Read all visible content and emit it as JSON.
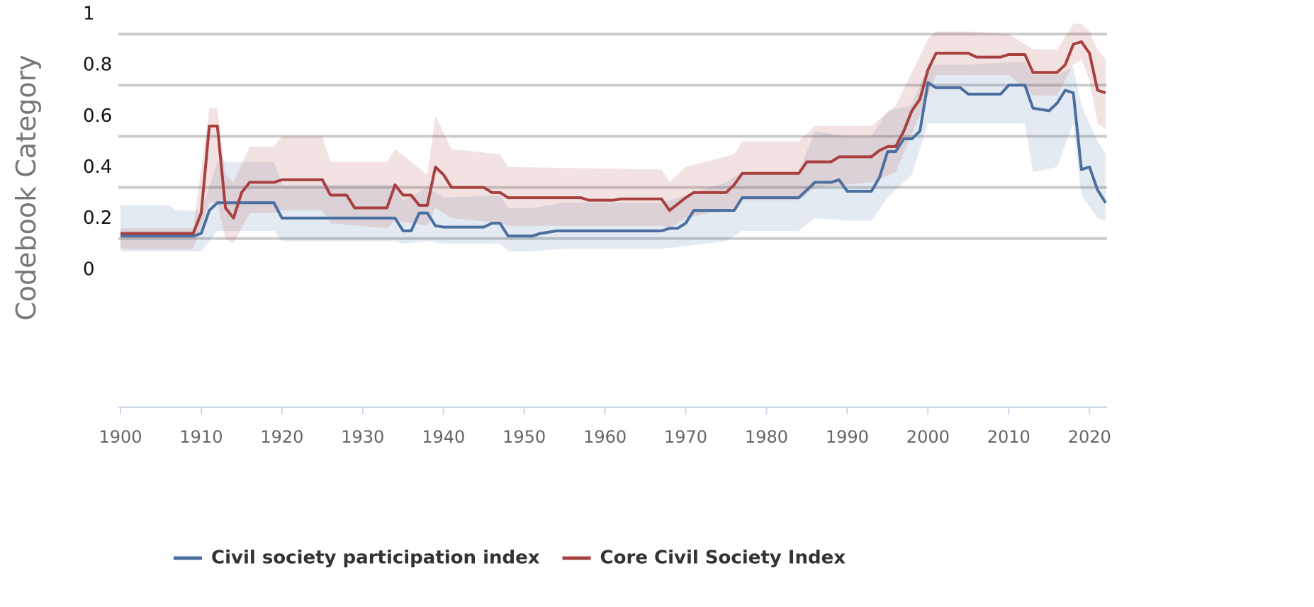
{
  "chart_data": {
    "type": "line",
    "y_axis_label": "Codebook Category",
    "xlim": [
      1900,
      2022
    ],
    "xticks": [
      1900,
      1910,
      1920,
      1930,
      1940,
      1950,
      1960,
      1970,
      1980,
      1990,
      2000,
      2010,
      2020
    ],
    "ylim": [
      -0.56,
      1
    ],
    "yticks": [
      0,
      0.2,
      0.4,
      0.6,
      0.8,
      1
    ],
    "grid_lines": [
      0.1,
      0.3,
      0.5,
      0.7,
      0.9
    ],
    "legend": "bottom",
    "series": [
      {
        "name": "Civil society participation index",
        "color": "#4a6fa0",
        "x": [
          1900,
          1909,
          1910,
          1911,
          1912,
          1919,
          1920,
          1934,
          1935,
          1936,
          1937,
          1938,
          1939,
          1940,
          1945,
          1946,
          1947,
          1948,
          1951,
          1952,
          1954,
          1967,
          1968,
          1969,
          1970,
          1971,
          1976,
          1977,
          1984,
          1985,
          1986,
          1988,
          1989,
          1990,
          1993,
          1994,
          1995,
          1996,
          1997,
          1998,
          1999,
          2000,
          2001,
          2004,
          2005,
          2009,
          2010,
          2012,
          2013,
          2015,
          2016,
          2017,
          2018,
          2019,
          2020,
          2021,
          2022
        ],
        "values": [
          0.11,
          0.11,
          0.12,
          0.21,
          0.24,
          0.24,
          0.18,
          0.18,
          0.13,
          0.13,
          0.2,
          0.2,
          0.15,
          0.145,
          0.145,
          0.16,
          0.16,
          0.11,
          0.11,
          0.12,
          0.13,
          0.13,
          0.14,
          0.14,
          0.16,
          0.21,
          0.21,
          0.26,
          0.26,
          0.29,
          0.32,
          0.32,
          0.33,
          0.285,
          0.285,
          0.34,
          0.44,
          0.44,
          0.49,
          0.49,
          0.52,
          0.71,
          0.69,
          0.69,
          0.665,
          0.665,
          0.7,
          0.7,
          0.61,
          0.6,
          0.63,
          0.68,
          0.67,
          0.37,
          0.38,
          0.29,
          0.24
        ],
        "band": {
          "x": [
            1900,
            1906,
            1907,
            1909,
            1910,
            1912,
            1919,
            1920,
            1934,
            1935,
            1938,
            1940,
            1947,
            1948,
            1951,
            1955,
            1967,
            1970,
            1975,
            1977,
            1984,
            1986,
            1990,
            1993,
            1995,
            1998,
            2000,
            2005,
            2010,
            2012,
            2013,
            2016,
            2018,
            2019,
            2021,
            2022
          ],
          "upper": [
            0.23,
            0.23,
            0.21,
            0.21,
            0.21,
            0.4,
            0.4,
            0.31,
            0.31,
            0.25,
            0.3,
            0.26,
            0.27,
            0.22,
            0.22,
            0.24,
            0.24,
            0.27,
            0.32,
            0.36,
            0.36,
            0.52,
            0.5,
            0.5,
            0.6,
            0.62,
            0.78,
            0.78,
            0.79,
            0.79,
            0.74,
            0.74,
            0.77,
            0.62,
            0.48,
            0.43
          ],
          "lower": [
            0.05,
            0.05,
            0.05,
            0.05,
            0.05,
            0.13,
            0.13,
            0.09,
            0.09,
            0.08,
            0.09,
            0.08,
            0.08,
            0.05,
            0.05,
            0.06,
            0.06,
            0.07,
            0.09,
            0.13,
            0.13,
            0.18,
            0.17,
            0.17,
            0.26,
            0.35,
            0.55,
            0.55,
            0.55,
            0.55,
            0.36,
            0.38,
            0.55,
            0.27,
            0.18,
            0.17
          ]
        }
      },
      {
        "name": "Core Civil Society Index",
        "color": "#a8403f",
        "x": [
          1900,
          1909,
          1910,
          1911,
          1912,
          1913,
          1914,
          1915,
          1916,
          1919,
          1920,
          1925,
          1926,
          1928,
          1929,
          1933,
          1934,
          1935,
          1936,
          1937,
          1938,
          1939,
          1940,
          1941,
          1945,
          1946,
          1947,
          1948,
          1957,
          1958,
          1961,
          1962,
          1967,
          1968,
          1969,
          1970,
          1971,
          1975,
          1976,
          1977,
          1984,
          1985,
          1988,
          1989,
          1993,
          1994,
          1995,
          1996,
          1997,
          1998,
          1999,
          2000,
          2001,
          2005,
          2006,
          2009,
          2010,
          2012,
          2013,
          2016,
          2017,
          2018,
          2019,
          2020,
          2021,
          2022
        ],
        "values": [
          0.12,
          0.12,
          0.2,
          0.54,
          0.54,
          0.22,
          0.18,
          0.28,
          0.32,
          0.32,
          0.33,
          0.33,
          0.27,
          0.27,
          0.22,
          0.22,
          0.31,
          0.27,
          0.27,
          0.23,
          0.23,
          0.38,
          0.35,
          0.3,
          0.3,
          0.28,
          0.28,
          0.26,
          0.26,
          0.25,
          0.25,
          0.255,
          0.255,
          0.21,
          0.235,
          0.26,
          0.28,
          0.28,
          0.31,
          0.355,
          0.355,
          0.4,
          0.4,
          0.42,
          0.42,
          0.445,
          0.46,
          0.46,
          0.52,
          0.6,
          0.645,
          0.76,
          0.825,
          0.825,
          0.81,
          0.81,
          0.82,
          0.82,
          0.75,
          0.75,
          0.78,
          0.86,
          0.87,
          0.825,
          0.68,
          0.67
        ],
        "band": {
          "x": [
            1900,
            1909,
            1911,
            1912,
            1913,
            1914,
            1916,
            1919,
            1920,
            1925,
            1926,
            1933,
            1934,
            1938,
            1939,
            1941,
            1947,
            1948,
            1967,
            1968,
            1970,
            1976,
            1977,
            1984,
            1986,
            1993,
            1996,
            2000,
            2001,
            2005,
            2010,
            2013,
            2016,
            2018,
            2019,
            2020,
            2021,
            2022
          ],
          "upper": [
            0.14,
            0.14,
            0.61,
            0.61,
            0.35,
            0.32,
            0.46,
            0.46,
            0.5,
            0.5,
            0.4,
            0.4,
            0.45,
            0.35,
            0.58,
            0.45,
            0.43,
            0.38,
            0.37,
            0.32,
            0.38,
            0.43,
            0.48,
            0.48,
            0.54,
            0.54,
            0.62,
            0.88,
            0.91,
            0.91,
            0.9,
            0.84,
            0.84,
            0.94,
            0.94,
            0.91,
            0.84,
            0.8
          ],
          "lower": [
            0.06,
            0.06,
            0.24,
            0.24,
            0.1,
            0.08,
            0.2,
            0.2,
            0.21,
            0.21,
            0.16,
            0.14,
            0.17,
            0.15,
            0.22,
            0.18,
            0.16,
            0.15,
            0.15,
            0.14,
            0.18,
            0.22,
            0.25,
            0.25,
            0.3,
            0.32,
            0.36,
            0.66,
            0.74,
            0.74,
            0.74,
            0.66,
            0.66,
            0.78,
            0.8,
            0.72,
            0.55,
            0.53
          ]
        }
      }
    ]
  }
}
